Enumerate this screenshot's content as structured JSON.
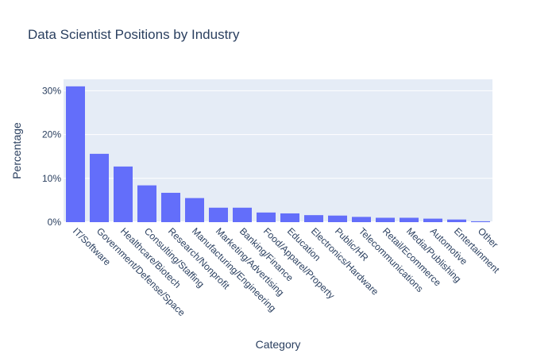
{
  "chart_data": {
    "type": "bar",
    "title": "Data Scientist Positions by Industry",
    "xlabel": "Category",
    "ylabel": "Percentage",
    "categories": [
      "IT/Software",
      "Government/Defense/Space",
      "Healthcare/Biotech",
      "Consulting/Staffing",
      "Research/Nonprofit",
      "Manufacturing/Engineering",
      "Marketing/Advertising",
      "Banking/Finance",
      "Food/Apparel/Property",
      "Education",
      "Electronics/Hardware",
      "Public/HR",
      "Telecommunications",
      "Retail/Ecommerce",
      "Media/Publishing",
      "Automotive",
      "Entertainment",
      "Other"
    ],
    "values": [
      31.0,
      15.6,
      12.7,
      8.4,
      6.7,
      5.5,
      3.3,
      3.3,
      2.2,
      2.0,
      1.6,
      1.5,
      1.2,
      1.0,
      1.0,
      0.8,
      0.6,
      0.2
    ],
    "ylim": [
      0,
      32.6
    ],
    "yticks": [
      0,
      10,
      20,
      30
    ],
    "ytick_labels": [
      "0%",
      "10%",
      "20%",
      "30%"
    ],
    "grid": true,
    "legend": "none",
    "colors": {
      "bar": "#636efa",
      "plot_bg": "#e5ecf6",
      "grid": "#ffffff",
      "text": "#2a3f5f"
    }
  }
}
